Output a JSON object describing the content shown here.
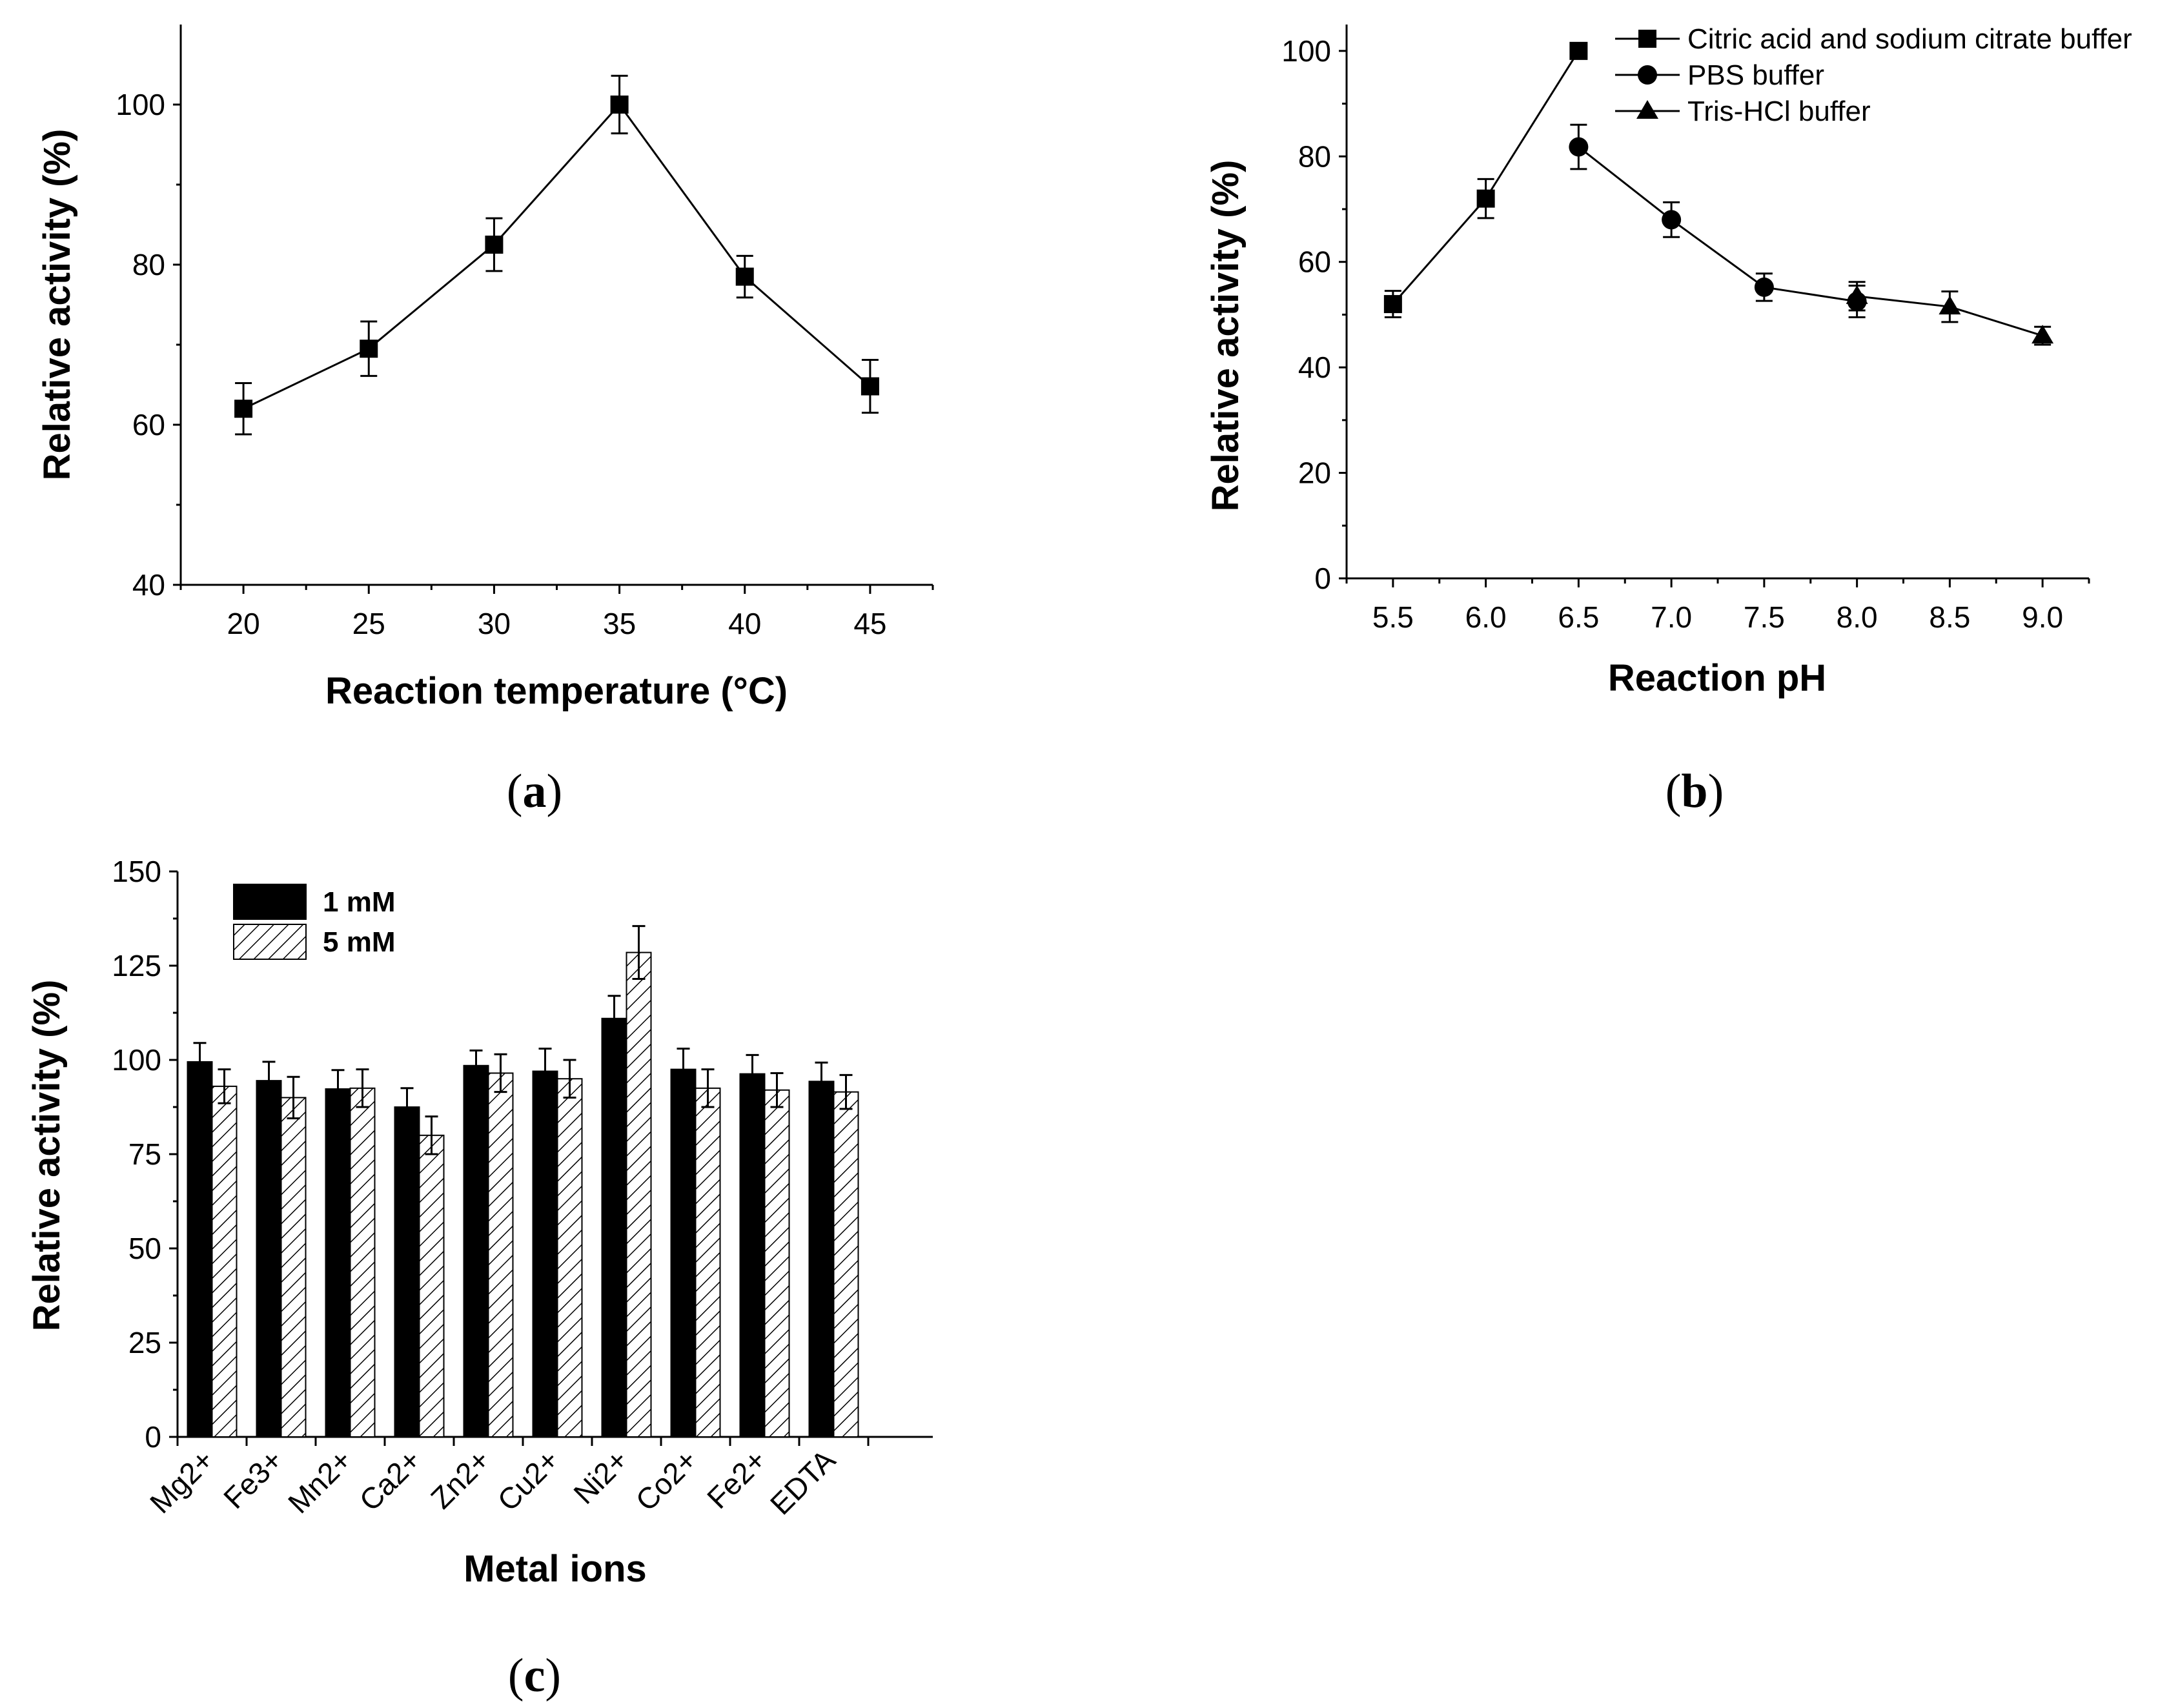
{
  "chart_data": [
    {
      "id": "a",
      "panel_label": "a",
      "type": "line",
      "xlabel": "Reaction temperature (°C)",
      "ylabel": "Relative activity (%)",
      "xlim": [
        17.5,
        47.5
      ],
      "ylim": [
        40,
        110
      ],
      "xticks": [
        20,
        25,
        30,
        35,
        40,
        45
      ],
      "yticks": [
        40,
        60,
        80,
        100
      ],
      "grid": false,
      "series": [
        {
          "name": "Relative activity",
          "marker": "square",
          "x": [
            20,
            25,
            30,
            35,
            40,
            45
          ],
          "y": [
            62,
            69.5,
            82.5,
            100,
            78.5,
            64.8
          ],
          "err": [
            3.2,
            3.4,
            3.3,
            3.6,
            2.6,
            3.3
          ]
        }
      ]
    },
    {
      "id": "b",
      "panel_label": "b",
      "type": "line",
      "xlabel": "Reaction pH",
      "ylabel": "Relative activity (%)",
      "xlim": [
        5.25,
        9.25
      ],
      "ylim": [
        0,
        105
      ],
      "xticks": [
        "5.5",
        "6.0",
        "6.5",
        "7.0",
        "7.5",
        "8.0",
        "8.5",
        "9.0"
      ],
      "yticks": [
        0,
        20,
        40,
        60,
        80,
        100
      ],
      "grid": false,
      "legend": "top-right",
      "series": [
        {
          "name": "Citric acid and sodium citrate buffer",
          "marker": "square",
          "x": [
            5.5,
            6.0,
            6.5
          ],
          "y": [
            52,
            72,
            100
          ],
          "err": [
            2.5,
            3.7,
            0
          ]
        },
        {
          "name": "PBS buffer",
          "marker": "circle",
          "x": [
            6.5,
            7.0,
            7.5,
            8.0
          ],
          "y": [
            81.8,
            68,
            55.2,
            52.5
          ],
          "err": [
            4.2,
            3.3,
            2.6,
            3.0
          ]
        },
        {
          "name": "Tris-HCl buffer",
          "marker": "triangle",
          "x": [
            8.0,
            8.5,
            9.0
          ],
          "y": [
            53.5,
            51.5,
            46
          ],
          "err": [
            2.7,
            2.9,
            1.7
          ]
        }
      ]
    },
    {
      "id": "c",
      "panel_label": "c",
      "type": "bar",
      "xlabel": "Metal ions",
      "ylabel": "Relative activity (%)",
      "ylim": [
        0,
        150
      ],
      "yticks": [
        0,
        25,
        50,
        75,
        100,
        125,
        150
      ],
      "grid": false,
      "legend": "top-left",
      "categories": [
        "Mg2+",
        "Fe3+",
        "Mn2+",
        "Ca2+",
        "Zn2+",
        "Cu2+",
        "Ni2+",
        "Co2+",
        "Fe2+",
        "EDTA"
      ],
      "series": [
        {
          "name": "1 mM",
          "fill": "solid",
          "values": [
            99.5,
            94.5,
            92.3,
            87.5,
            98.5,
            97,
            111,
            97.5,
            96.3,
            94.3
          ],
          "err": [
            5,
            5,
            5,
            5,
            4,
            6,
            6,
            5.5,
            5,
            5
          ]
        },
        {
          "name": "5 mM",
          "fill": "hatched",
          "values": [
            93,
            90,
            92.5,
            80,
            96.5,
            95,
            128.5,
            92.5,
            92,
            91.5
          ],
          "err": [
            4.5,
            5.5,
            5,
            5,
            5,
            5,
            7,
            5,
            4.5,
            4.5
          ]
        }
      ]
    }
  ]
}
